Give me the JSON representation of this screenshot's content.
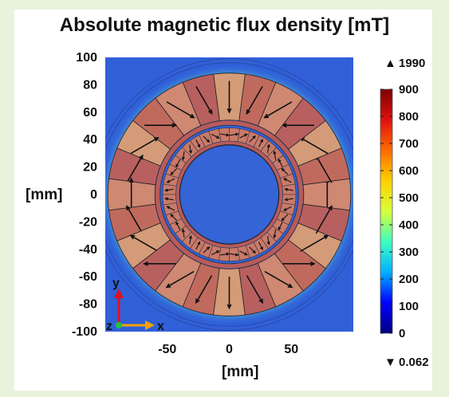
{
  "chart_data": {
    "type": "heatmap",
    "title": "Absolute magnetic flux density [mT]",
    "xlabel": "[mm]",
    "ylabel": "[mm]",
    "xlim": [
      -100,
      100
    ],
    "ylim": [
      -100,
      100
    ],
    "x_ticks": [
      "-50",
      "0",
      "50"
    ],
    "y_ticks": [
      "100",
      "80",
      "60",
      "40",
      "20",
      "0",
      "-20",
      "-40",
      "-60",
      "-80",
      "-100"
    ],
    "colorbar": {
      "range": [
        0,
        900
      ],
      "ticks": [
        "900",
        "800",
        "700",
        "600",
        "500",
        "400",
        "300",
        "200",
        "100",
        "0"
      ],
      "max_label": "1990",
      "min_label": "0.062",
      "max_marker": "▲",
      "min_marker": "▼",
      "colors": [
        "#00007f",
        "#0000ff",
        "#00b0ff",
        "#3fffc0",
        "#d8ff3a",
        "#ffd000",
        "#ff6a00",
        "#e01010",
        "#7f0000"
      ]
    },
    "outer_magnet_segments": 24,
    "inner_magnet_segments": 40,
    "axis_triad": {
      "y": "y",
      "x": "x",
      "z": "z"
    },
    "colors": {
      "background": "#3060d8",
      "magnet": "#c77a6c",
      "core": "#3464d6",
      "ring": "#b95b58"
    }
  }
}
